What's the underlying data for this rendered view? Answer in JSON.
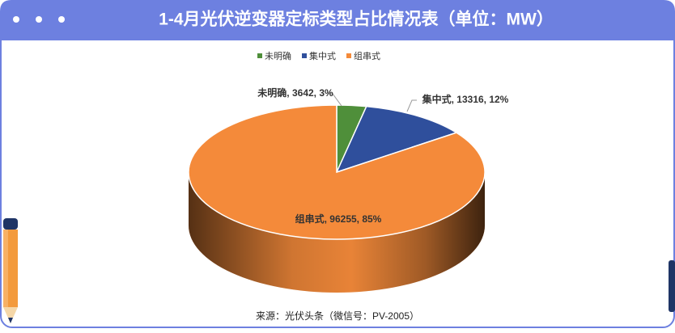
{
  "chart_data": {
    "type": "pie3d",
    "title": "1-4月光伏逆变器定标类型占比情况表（单位：MW）",
    "source": "来源：光伏头条（微信号：PV-2005）",
    "categories": [
      "未明确",
      "集中式",
      "组串式"
    ],
    "values": [
      3642,
      13316,
      96255
    ],
    "value_labels": [
      "未明确, 3642, 3%",
      "集中式, 13316, 12%",
      "组串式, 96255, 85%"
    ],
    "colors": [
      "#4f8f3a",
      "#2f4f9c",
      "#f48a3a"
    ],
    "legend": "top"
  }
}
